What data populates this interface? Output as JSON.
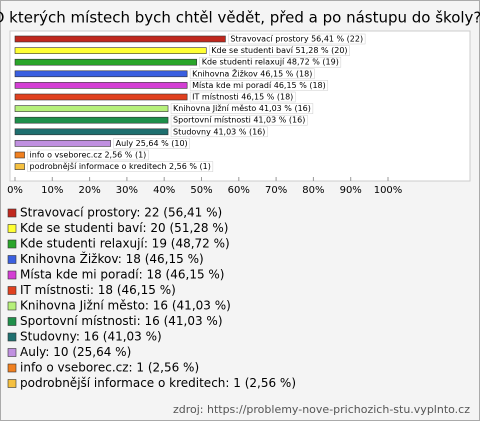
{
  "chart_data": {
    "type": "bar",
    "orientation": "horizontal",
    "title": "O kterých místech bych chtěl vědět, před a po nástupu do školy?",
    "categories": [
      "Stravovací prostory",
      "Kde se studenti baví",
      "Kde studenti relaxují",
      "Knihovna Žižkov",
      "Místa kde mi poradí",
      "IT místnosti",
      "Knihovna Jižní město",
      "Sportovní místnosti",
      "Studovny",
      "Auly",
      "info o vseborec.cz",
      "podrobnější informace o kreditech"
    ],
    "values": [
      56.41,
      51.28,
      48.72,
      46.15,
      46.15,
      46.15,
      41.03,
      41.03,
      41.03,
      25.64,
      2.56,
      2.56
    ],
    "value_labels": [
      "Stravovací prostory 56,41 % (22)",
      "Kde se studenti baví 51,28 % (20)",
      "Kde studenti relaxují 48,72 % (19)",
      "Knihovna Žižkov 46,15 % (18)",
      "Místa kde mi poradí 46,15 % (18)",
      "IT místnosti 46,15 % (18)",
      "Knihovna Jižní město 41,03 % (16)",
      "Sportovní místnosti 41,03 % (16)",
      "Studovny 41,03 % (16)",
      "Auly 25,64 % (10)",
      "info o vseborec.cz 2,56 % (1)",
      "podrobnější informace o kreditech 2,56 % (1)"
    ],
    "colors": [
      "#c0281e",
      "#ffff33",
      "#2aa52a",
      "#3a5fe0",
      "#d43fd4",
      "#e0401f",
      "#b6f07a",
      "#1f8f4a",
      "#1e6f6f",
      "#c090e0",
      "#f08020",
      "#f5c040"
    ],
    "legend": [
      "Stravovací prostory: 22 (56,41 %)",
      "Kde se studenti baví: 20 (51,28 %)",
      "Kde studenti relaxují: 19 (48,72 %)",
      "Knihovna Žižkov: 18 (46,15 %)",
      "Místa kde mi poradí: 18 (46,15 %)",
      "IT místnosti: 18 (46,15 %)",
      "Knihovna Jižní město: 16 (41,03 %)",
      "Sportovní místnosti: 16 (41,03 %)",
      "Studovny: 16 (41,03 %)",
      "Auly: 10 (25,64 %)",
      "info o vseborec.cz: 1 (2,56 %)",
      "podrobnější informace o kreditech: 1 (2,56 %)"
    ],
    "xlim": [
      0,
      100
    ],
    "xticks": [
      {
        "value": 0,
        "label": "0%"
      },
      {
        "value": 10,
        "label": "10%"
      },
      {
        "value": 20,
        "label": "20%"
      },
      {
        "value": 30,
        "label": "30%"
      },
      {
        "value": 40,
        "label": "40%"
      },
      {
        "value": 50,
        "label": "50%"
      },
      {
        "value": 60,
        "label": "60%"
      },
      {
        "value": 70,
        "label": "70%"
      },
      {
        "value": 80,
        "label": "80%"
      },
      {
        "value": 90,
        "label": "90%"
      },
      {
        "value": 100,
        "label": "100%"
      }
    ],
    "source": "zdroj: https://problemy-nove-prichozich-stu.vyplnto.cz"
  }
}
